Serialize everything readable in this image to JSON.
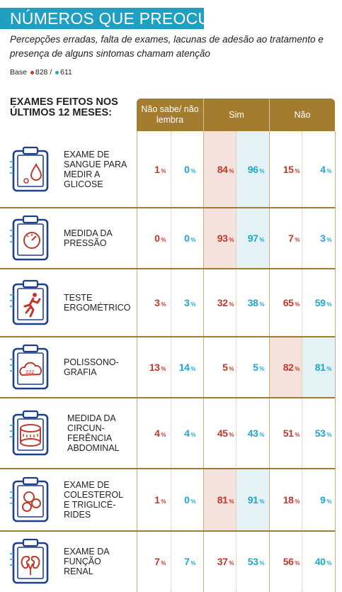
{
  "title": "NÚMEROS QUE PREOCUPAM",
  "subtitle": "Percepções erradas, falta de exames, lacunas de adesão ao tratamento e presença de alguns sintomas chamam atenção",
  "base": {
    "label": "Base",
    "n1": "828",
    "sep": "/",
    "n2": "611"
  },
  "colors": {
    "red": "#c0392b",
    "blue": "#1fa7c9",
    "header": "#a47c30",
    "title_bg": "#1f9fc2"
  },
  "chart_data": {
    "type": "table",
    "row_header": "EXAMES FEITOS NOS ÚLTIMOS 12 MESES:",
    "column_groups": [
      "Não sabe/ não lembra",
      "Sim",
      "Não"
    ],
    "series": [
      {
        "color": "red"
      },
      {
        "color": "blue"
      }
    ],
    "unit": "%",
    "rows": [
      {
        "label": "Exame de sangue para medir a glicose",
        "icon": "blood-drop-clipboard-icon",
        "values": [
          1,
          0,
          84,
          96,
          15,
          4
        ],
        "highlight": "Sim"
      },
      {
        "label": "Medida da pressão",
        "icon": "pressure-gauge-clipboard-icon",
        "values": [
          0,
          0,
          93,
          97,
          7,
          3
        ],
        "highlight": "Sim"
      },
      {
        "label": "Teste ergométrico",
        "icon": "runner-clipboard-icon",
        "values": [
          3,
          3,
          32,
          38,
          65,
          59
        ],
        "highlight": ""
      },
      {
        "label": "Polissono-grafia",
        "icon": "sleep-cloud-clipboard-icon",
        "values": [
          13,
          14,
          5,
          5,
          82,
          81
        ],
        "highlight": "Não"
      },
      {
        "label": "Medida da circun-ferência abdominal",
        "icon": "measuring-tape-clipboard-icon",
        "values": [
          4,
          4,
          45,
          43,
          51,
          53
        ],
        "highlight": ""
      },
      {
        "label": "Exame de colesterol e triglicé-rides",
        "icon": "cholesterol-clipboard-icon",
        "values": [
          1,
          0,
          81,
          91,
          18,
          9
        ],
        "highlight": "Sim"
      },
      {
        "label": "Exame da função renal",
        "icon": "kidney-clipboard-icon",
        "values": [
          7,
          7,
          37,
          53,
          56,
          40
        ],
        "highlight": ""
      }
    ]
  }
}
